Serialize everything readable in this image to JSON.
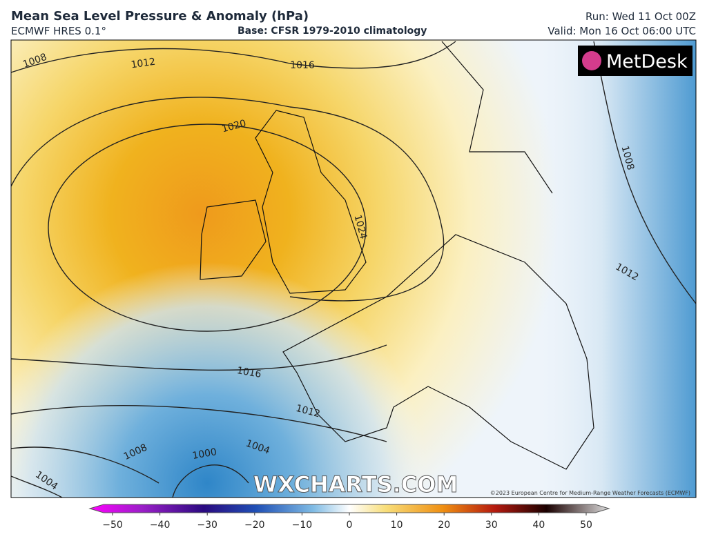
{
  "header": {
    "title": "Mean Sea Level Pressure & Anomaly (hPa)",
    "model": "ECMWF HRES 0.1°",
    "base": "Base: CFSR 1979-2010 climatology",
    "run": "Run: Wed 11 Oct 00Z",
    "valid": "Valid: Mon 16 Oct 06:00 UTC"
  },
  "map": {
    "logo": "MetDesk",
    "watermark": "WXCHARTS.COM",
    "copyright": "©2023 European Centre for Medium-Range Weather Forecasts (ECMWF)",
    "contour_labels": [
      1008,
      1012,
      1016,
      1020,
      1024,
      1016,
      1012,
      1008,
      1004,
      1000,
      1004,
      1008,
      1012
    ]
  },
  "colorbar": {
    "ticks": [
      {
        "value": -50,
        "label": "−50"
      },
      {
        "value": -40,
        "label": "−40"
      },
      {
        "value": -30,
        "label": "−30"
      },
      {
        "value": -20,
        "label": "−20"
      },
      {
        "value": -10,
        "label": "−10"
      },
      0,
      10,
      20,
      30,
      40,
      50
    ],
    "range": [
      -50,
      50
    ]
  }
}
